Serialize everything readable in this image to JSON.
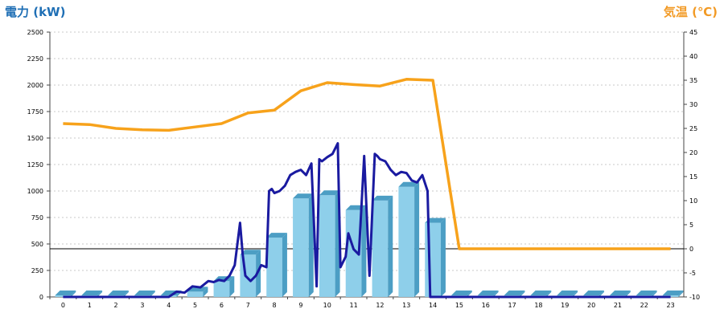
{
  "chart_data": {
    "type": "bar+line",
    "title_left": "電力 (kW)",
    "title_right": "気温 (℃)",
    "x_categories": [
      "0",
      "1",
      "2",
      "3",
      "4",
      "5",
      "6",
      "7",
      "8",
      "9",
      "10",
      "11",
      "12",
      "13",
      "14",
      "15",
      "16",
      "17",
      "18",
      "19",
      "20",
      "21",
      "22",
      "23"
    ],
    "y_left_ticks": [
      "0",
      "250",
      "500",
      "750",
      "1000",
      "1250",
      "1500",
      "1750",
      "2000",
      "2250",
      "2500"
    ],
    "y_left_range": [
      0,
      2500
    ],
    "y_right_ticks": [
      "-10",
      "-5",
      "0",
      "5",
      "10",
      "15",
      "20",
      "25",
      "30",
      "35",
      "40",
      "45"
    ],
    "y_right_range": [
      -10,
      45
    ],
    "grid": true,
    "colors": {
      "bar": "#8ecfea",
      "bar_dark": "#4c9ec4",
      "power_line": "#1a1aa0",
      "temp_line": "#f7a21b",
      "title_left": "#1f6fb5",
      "title_right": "#f29a25"
    },
    "series": [
      {
        "type": "bar",
        "axis": "left",
        "values": [
          0,
          0,
          0,
          0,
          0,
          50,
          150,
          400,
          560,
          930,
          960,
          820,
          910,
          1040,
          700,
          0,
          0,
          0,
          0,
          0,
          0,
          0,
          0,
          0
        ]
      },
      {
        "type": "line",
        "axis": "left",
        "x": [
          0,
          0.5,
          1,
          1.5,
          2,
          2.5,
          3,
          3.5,
          4,
          4.3,
          4.6,
          4.9,
          5.2,
          5.5,
          5.7,
          5.9,
          6.1,
          6.3,
          6.5,
          6.7,
          6.8,
          6.9,
          7.1,
          7.3,
          7.5,
          7.7,
          7.8,
          7.9,
          8.0,
          8.2,
          8.4,
          8.6,
          8.8,
          9.0,
          9.2,
          9.4,
          9.6,
          9.7,
          9.8,
          10.0,
          10.2,
          10.4,
          10.5,
          10.7,
          10.8,
          11.0,
          11.2,
          11.4,
          11.6,
          11.8,
          11.9,
          12.0,
          12.2,
          12.4,
          12.6,
          12.8,
          13.0,
          13.2,
          13.4,
          13.6,
          13.8,
          13.9,
          14.0,
          14.2,
          14.5,
          15,
          16,
          17,
          18,
          19,
          20,
          21,
          22,
          23
        ],
        "y": [
          0,
          0,
          0,
          0,
          0,
          0,
          0,
          0,
          0,
          50,
          40,
          100,
          90,
          150,
          140,
          160,
          150,
          200,
          300,
          700,
          400,
          200,
          150,
          200,
          300,
          280,
          1000,
          1020,
          980,
          1000,
          1050,
          1150,
          1180,
          1200,
          1150,
          1260,
          100,
          1300,
          1280,
          1320,
          1350,
          1450,
          280,
          380,
          600,
          450,
          400,
          1330,
          200,
          1350,
          1330,
          1300,
          1280,
          1200,
          1150,
          1180,
          1170,
          1100,
          1080,
          1150,
          1000,
          0,
          0,
          0,
          0,
          0,
          0,
          0,
          0,
          0,
          0,
          0,
          0,
          0
        ]
      },
      {
        "type": "line",
        "axis": "right",
        "x": [
          0,
          1,
          2,
          3,
          4,
          5,
          6,
          7,
          8,
          9,
          10,
          11,
          12,
          13,
          14,
          15,
          16,
          17,
          18,
          19,
          20,
          21,
          22,
          23
        ],
        "y": [
          26.0,
          25.8,
          25.0,
          24.7,
          24.6,
          25.3,
          26.0,
          28.2,
          28.8,
          32.8,
          34.5,
          34.1,
          33.8,
          35.2,
          35.0,
          0,
          0,
          0,
          0,
          0,
          0,
          0,
          0,
          0
        ]
      }
    ]
  }
}
